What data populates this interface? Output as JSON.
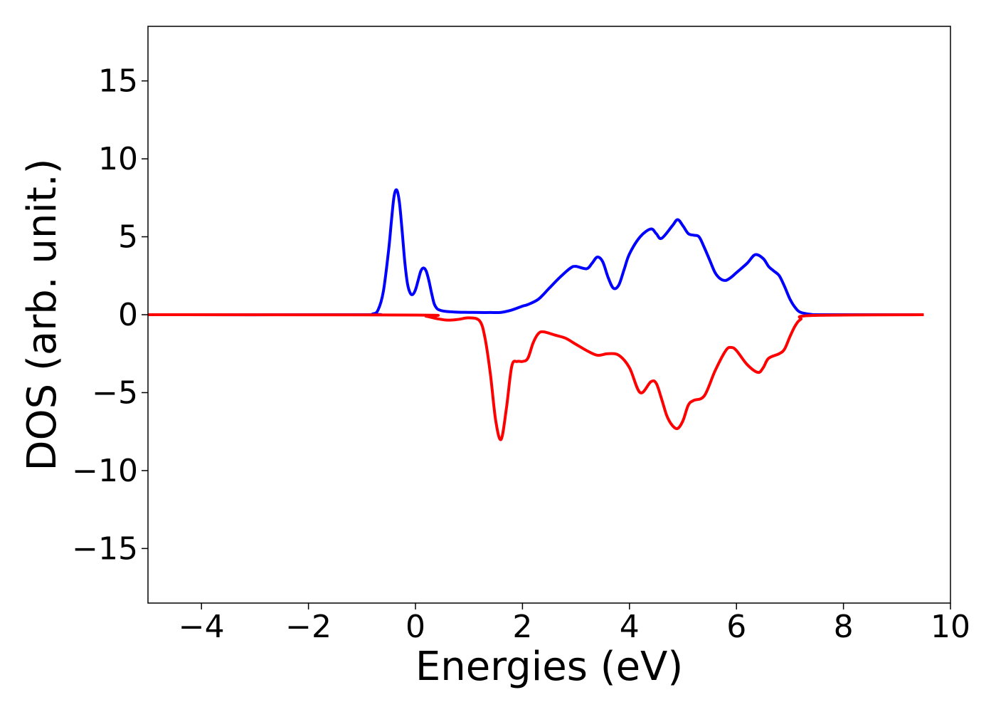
{
  "chart_data": {
    "type": "line",
    "title": "",
    "xlabel": "Energies (eV)",
    "ylabel": "DOS (arb. unit.)",
    "xlim": [
      -5,
      10
    ],
    "ylim": [
      -18.5,
      18.5
    ],
    "xticks": [
      -4,
      -2,
      0,
      2,
      4,
      6,
      8,
      10
    ],
    "yticks": [
      -15,
      -10,
      -5,
      0,
      5,
      10,
      15
    ],
    "xtick_labels": [
      "−4",
      "−2",
      "0",
      "2",
      "4",
      "6",
      "8",
      "10"
    ],
    "ytick_labels": [
      "−15",
      "−10",
      "−5",
      "0",
      "5",
      "10",
      "15"
    ],
    "grid": false,
    "series": [
      {
        "color": "#0000ff",
        "x": [
          -5,
          -1.0,
          -0.8,
          -0.7,
          -0.6,
          -0.5,
          -0.45,
          -0.4,
          -0.35,
          -0.3,
          -0.25,
          -0.2,
          -0.15,
          -0.1,
          -0.05,
          0.0,
          0.05,
          0.1,
          0.15,
          0.2,
          0.25,
          0.3,
          0.35,
          0.4,
          0.45,
          0.5,
          0.6,
          0.7,
          0.8,
          1.0,
          1.2,
          1.4,
          1.6,
          1.8,
          2.0,
          2.1,
          2.3,
          2.5,
          2.7,
          2.9,
          3.0,
          3.2,
          3.3,
          3.4,
          3.5,
          3.6,
          3.7,
          3.8,
          3.9,
          4.0,
          4.2,
          4.4,
          4.5,
          4.6,
          4.8,
          4.9,
          5.0,
          5.1,
          5.2,
          5.3,
          5.4,
          5.5,
          5.6,
          5.7,
          5.8,
          5.9,
          6.0,
          6.2,
          6.35,
          6.5,
          6.6,
          6.7,
          6.8,
          6.9,
          7.0,
          7.1,
          7.2,
          7.4,
          7.6,
          9.5
        ],
        "y": [
          0,
          0,
          0.05,
          0.3,
          1.5,
          4.2,
          6.0,
          7.6,
          8.0,
          7.2,
          5.4,
          3.4,
          2.0,
          1.4,
          1.3,
          1.6,
          2.2,
          2.8,
          3.0,
          2.8,
          2.2,
          1.4,
          0.7,
          0.4,
          0.3,
          0.25,
          0.2,
          0.18,
          0.16,
          0.15,
          0.14,
          0.14,
          0.15,
          0.3,
          0.55,
          0.65,
          1.0,
          1.7,
          2.4,
          3.0,
          3.1,
          2.95,
          3.3,
          3.7,
          3.4,
          2.4,
          1.7,
          1.9,
          2.9,
          3.9,
          5.0,
          5.5,
          5.2,
          4.9,
          5.7,
          6.1,
          5.7,
          5.2,
          5.1,
          5.0,
          4.3,
          3.5,
          2.7,
          2.3,
          2.2,
          2.4,
          2.7,
          3.3,
          3.85,
          3.6,
          3.1,
          2.8,
          2.5,
          1.8,
          1.0,
          0.45,
          0.15,
          0.02,
          0,
          0
        ]
      },
      {
        "color": "#ff0000",
        "x": [
          -5,
          0.0,
          0.2,
          0.4,
          0.6,
          0.8,
          1.0,
          1.2,
          1.3,
          1.4,
          1.5,
          1.6,
          1.7,
          1.8,
          1.9,
          2.0,
          2.1,
          2.2,
          2.3,
          2.4,
          2.6,
          2.8,
          3.0,
          3.2,
          3.4,
          3.6,
          3.8,
          4.0,
          4.2,
          4.4,
          4.5,
          4.6,
          4.7,
          4.8,
          4.9,
          5.0,
          5.1,
          5.2,
          5.4,
          5.6,
          5.8,
          5.9,
          6.0,
          6.2,
          6.4,
          6.5,
          6.6,
          6.8,
          6.9,
          7.0,
          7.1,
          7.2,
          7.4,
          9.5
        ],
        "y": [
          0,
          -0.02,
          -0.1,
          -0.25,
          -0.35,
          -0.3,
          -0.2,
          -0.4,
          -1.5,
          -3.8,
          -6.8,
          -8.0,
          -6.0,
          -3.3,
          -3.0,
          -3.0,
          -2.8,
          -1.8,
          -1.2,
          -1.1,
          -1.3,
          -1.5,
          -1.9,
          -2.3,
          -2.6,
          -2.5,
          -2.6,
          -3.4,
          -5.0,
          -4.3,
          -4.4,
          -5.4,
          -6.5,
          -7.1,
          -7.3,
          -6.8,
          -5.8,
          -5.5,
          -5.2,
          -3.6,
          -2.3,
          -2.1,
          -2.3,
          -3.2,
          -3.7,
          -3.4,
          -2.8,
          -2.5,
          -2.2,
          -1.4,
          -0.7,
          -0.3,
          -0.05,
          0
        ]
      }
    ]
  }
}
